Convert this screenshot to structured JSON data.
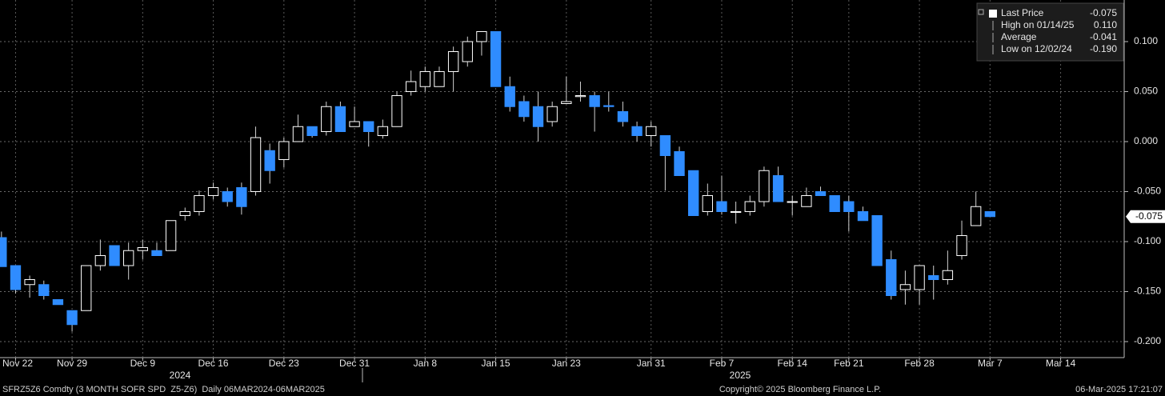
{
  "chart_data": {
    "type": "candlestick",
    "categories": [
      null,
      "Nov 22",
      null,
      null,
      null,
      "Nov 29",
      null,
      null,
      null,
      null,
      "Dec 9",
      null,
      null,
      null,
      null,
      "Dec 16",
      null,
      null,
      null,
      null,
      "Dec 23",
      null,
      null,
      null,
      null,
      "Dec 31",
      null,
      null,
      null,
      null,
      "Jan 8",
      null,
      null,
      null,
      null,
      "Jan 15",
      null,
      null,
      null,
      null,
      "Jan 23",
      null,
      null,
      null,
      null,
      null,
      "Jan 31",
      null,
      null,
      null,
      null,
      "Feb 7",
      null,
      null,
      null,
      null,
      "Feb 14",
      null,
      null,
      null,
      "Feb 21",
      null,
      null,
      null,
      null,
      "Feb 28",
      null,
      null,
      null,
      null,
      "Mar 7",
      null,
      null,
      null,
      null,
      "Mar 14",
      null,
      null,
      null,
      null
    ],
    "open": [
      -0.096,
      -0.124,
      -0.143,
      -0.143,
      -0.158,
      -0.169,
      -0.169,
      -0.124,
      -0.104,
      -0.124,
      -0.109,
      -0.109,
      -0.109,
      -0.074,
      -0.07,
      -0.054,
      -0.05,
      -0.046,
      -0.05,
      -0.009,
      -0.018,
      0.0,
      0.015,
      0.01,
      0.035,
      0.015,
      0.02,
      0.006,
      0.015,
      0.05,
      0.055,
      0.055,
      0.07,
      0.08,
      0.1,
      0.11,
      0.055,
      0.04,
      0.035,
      0.02,
      0.038,
      0.045,
      0.046,
      0.036,
      0.03,
      0.015,
      0.006,
      0.006,
      -0.01,
      -0.029,
      -0.07,
      -0.06,
      -0.07,
      -0.07,
      -0.06,
      -0.034,
      -0.06,
      -0.065,
      -0.05,
      -0.054,
      -0.06,
      -0.07,
      -0.074,
      -0.118,
      -0.148,
      -0.148,
      -0.134,
      -0.138,
      -0.114,
      -0.084,
      -0.07,
      null,
      null,
      null,
      null,
      null,
      null,
      null,
      null,
      null
    ],
    "high": [
      -0.09,
      -0.124,
      -0.134,
      -0.139,
      -0.158,
      -0.169,
      -0.124,
      -0.098,
      -0.104,
      -0.101,
      -0.098,
      -0.101,
      -0.079,
      -0.066,
      -0.049,
      -0.041,
      -0.046,
      -0.041,
      0.015,
      -0.002,
      0.004,
      0.027,
      0.015,
      0.04,
      0.04,
      0.035,
      0.02,
      0.022,
      0.05,
      0.071,
      0.075,
      0.075,
      0.095,
      0.105,
      0.11,
      0.11,
      0.065,
      0.046,
      0.05,
      0.04,
      0.065,
      0.06,
      0.05,
      0.05,
      0.04,
      0.02,
      0.02,
      0.006,
      -0.005,
      -0.029,
      -0.042,
      -0.034,
      -0.06,
      -0.054,
      -0.025,
      -0.025,
      -0.054,
      -0.046,
      -0.045,
      -0.054,
      -0.054,
      -0.065,
      -0.074,
      -0.109,
      -0.129,
      -0.124,
      -0.124,
      -0.109,
      -0.079,
      -0.05,
      -0.07,
      null,
      null,
      null,
      null,
      null,
      null,
      null,
      null,
      null
    ],
    "low": [
      -0.125,
      -0.152,
      -0.156,
      -0.158,
      -0.163,
      -0.19,
      -0.169,
      -0.129,
      -0.124,
      -0.138,
      -0.118,
      -0.114,
      -0.109,
      -0.079,
      -0.074,
      -0.058,
      -0.065,
      -0.073,
      -0.054,
      -0.042,
      -0.026,
      0.0,
      0.004,
      0.006,
      0.01,
      0.015,
      -0.005,
      0.003,
      0.015,
      0.046,
      0.05,
      0.055,
      0.05,
      0.075,
      0.086,
      0.055,
      0.03,
      0.02,
      0.0,
      0.015,
      0.038,
      0.04,
      0.01,
      0.03,
      0.015,
      0.0,
      -0.005,
      -0.049,
      -0.034,
      -0.074,
      -0.074,
      -0.073,
      -0.082,
      -0.074,
      -0.065,
      -0.06,
      -0.074,
      -0.065,
      -0.054,
      -0.07,
      -0.09,
      -0.079,
      -0.124,
      -0.158,
      -0.163,
      -0.163,
      -0.158,
      -0.143,
      -0.118,
      -0.084,
      -0.075,
      null,
      null,
      null,
      null,
      null,
      null,
      null,
      null,
      null
    ],
    "close": [
      -0.125,
      -0.148,
      -0.138,
      -0.154,
      -0.163,
      -0.183,
      -0.124,
      -0.114,
      -0.124,
      -0.109,
      -0.106,
      -0.114,
      -0.079,
      -0.07,
      -0.054,
      -0.046,
      -0.06,
      -0.065,
      0.004,
      -0.029,
      0.0,
      0.015,
      0.006,
      0.035,
      0.01,
      0.02,
      0.01,
      0.015,
      0.046,
      0.06,
      0.07,
      0.07,
      0.09,
      0.1,
      0.11,
      0.055,
      0.035,
      0.025,
      0.015,
      0.035,
      0.04,
      0.046,
      0.035,
      0.035,
      0.02,
      0.006,
      0.015,
      -0.014,
      -0.034,
      -0.074,
      -0.054,
      -0.07,
      -0.07,
      -0.06,
      -0.029,
      -0.06,
      -0.06,
      -0.054,
      -0.054,
      -0.07,
      -0.07,
      -0.079,
      -0.124,
      -0.154,
      -0.143,
      -0.124,
      -0.138,
      -0.129,
      -0.094,
      -0.065,
      -0.075,
      null,
      null,
      null,
      null,
      null,
      null,
      null,
      null,
      null
    ],
    "colors": {
      "up": "#000000",
      "up_outline": "#ffffff",
      "down": "#2f8cff",
      "wick": "#d0d0d0"
    },
    "ylim": [
      -0.2144,
      0.1416
    ],
    "yticks": [
      {
        "value": 0.1,
        "label": "0.100"
      },
      {
        "value": 0.05,
        "label": "0.050"
      },
      {
        "value": 0,
        "label": "0.000"
      },
      {
        "value": -0.05,
        "label": "-0.050"
      },
      {
        "value": -0.1,
        "label": "-0.100"
      },
      {
        "value": -0.15,
        "label": "-0.150"
      },
      {
        "value": -0.2,
        "label": "-0.200"
      }
    ],
    "grid": true,
    "year_labels": [
      "2024",
      "2025"
    ],
    "legend": {
      "position": "top-right",
      "entries": [
        {
          "name": "Last Price",
          "value": -0.075,
          "label": "-0.075"
        },
        {
          "name": "High on 01/14/25",
          "value": 0.11,
          "label": "0.110"
        },
        {
          "name": "Average",
          "value": -0.041,
          "label": "-0.041"
        },
        {
          "name": "Low on 12/02/24",
          "value": -0.19,
          "label": "-0.190"
        }
      ]
    }
  },
  "footer": {
    "left": "SFRZ5Z6 Comdty (3 MONTH SOFR SPD  Z5-Z6)  Daily 06MAR2024-06MAR2025",
    "center": "Copyright© 2025 Bloomberg Finance L.P.",
    "right": "06-Mar-2025 17:21:07"
  }
}
